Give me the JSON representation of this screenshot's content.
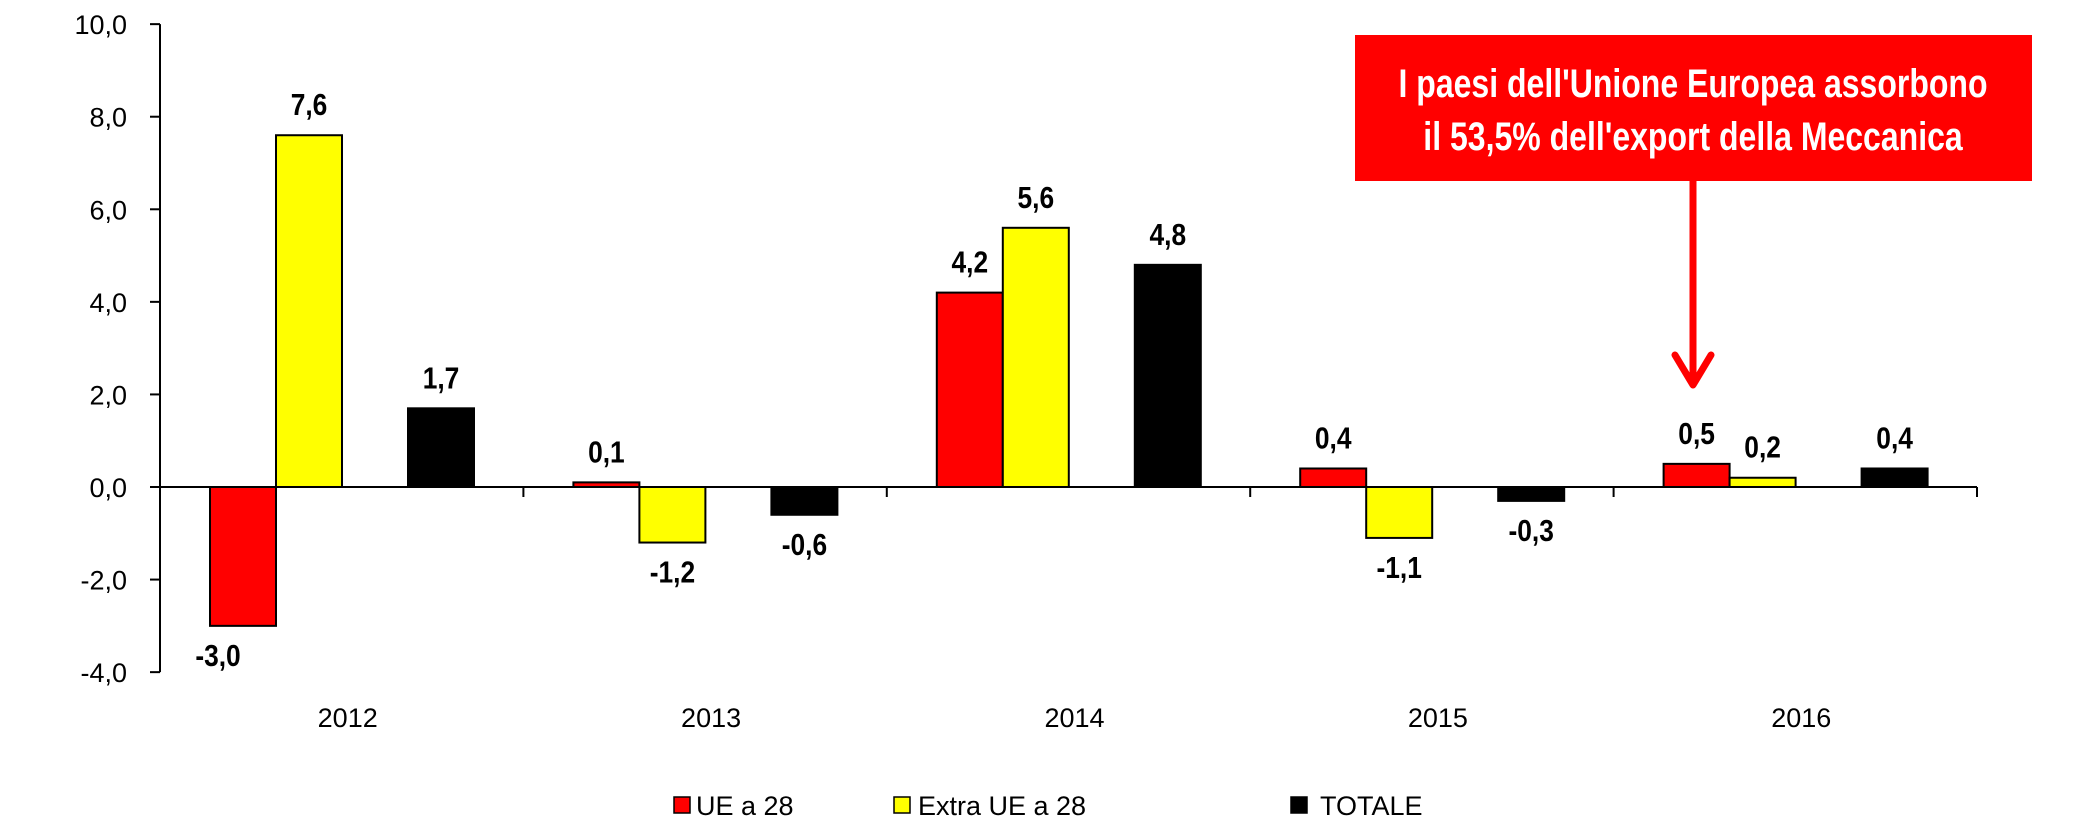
{
  "chart_data": {
    "type": "bar",
    "title": "",
    "xlabel": "",
    "ylabel": "",
    "categories": [
      "2012",
      "2013",
      "2014",
      "2015",
      "2016"
    ],
    "series": [
      {
        "name": "UE a 28",
        "color": "#ff0000",
        "values": [
          -3.0,
          0.1,
          4.2,
          0.4,
          0.5
        ],
        "labels": [
          "-3,0",
          "0,1",
          "4,2",
          "0,4",
          "0,5"
        ]
      },
      {
        "name": "Extra UE a 28",
        "color": "#ffff00",
        "values": [
          7.6,
          -1.2,
          5.6,
          -1.1,
          0.2
        ],
        "labels": [
          "7,6",
          "-1,2",
          "5,6",
          "-1,1",
          "0,2"
        ]
      },
      {
        "name": "TOTALE",
        "color": "#000000",
        "values": [
          1.7,
          -0.6,
          4.8,
          -0.3,
          0.4
        ],
        "labels": [
          "1,7",
          "-0,6",
          "4,8",
          "-0,3",
          "0,4"
        ]
      }
    ],
    "ylim": [
      -4,
      10
    ],
    "yticks": [
      -4,
      -2,
      0,
      2,
      4,
      6,
      8,
      10
    ],
    "ytick_labels": [
      "-4,0",
      "-2,0",
      "0,0",
      "2,0",
      "4,0",
      "6,0",
      "8,0",
      "10,0"
    ],
    "grid": false,
    "legend_position": "bottom-center",
    "annotation": {
      "lines": [
        "I paesi dell'Unione Europea assorbono",
        "il 53,5% dell'export della Meccanica"
      ],
      "background": "#ff0000",
      "points_to_category": "2016"
    }
  }
}
